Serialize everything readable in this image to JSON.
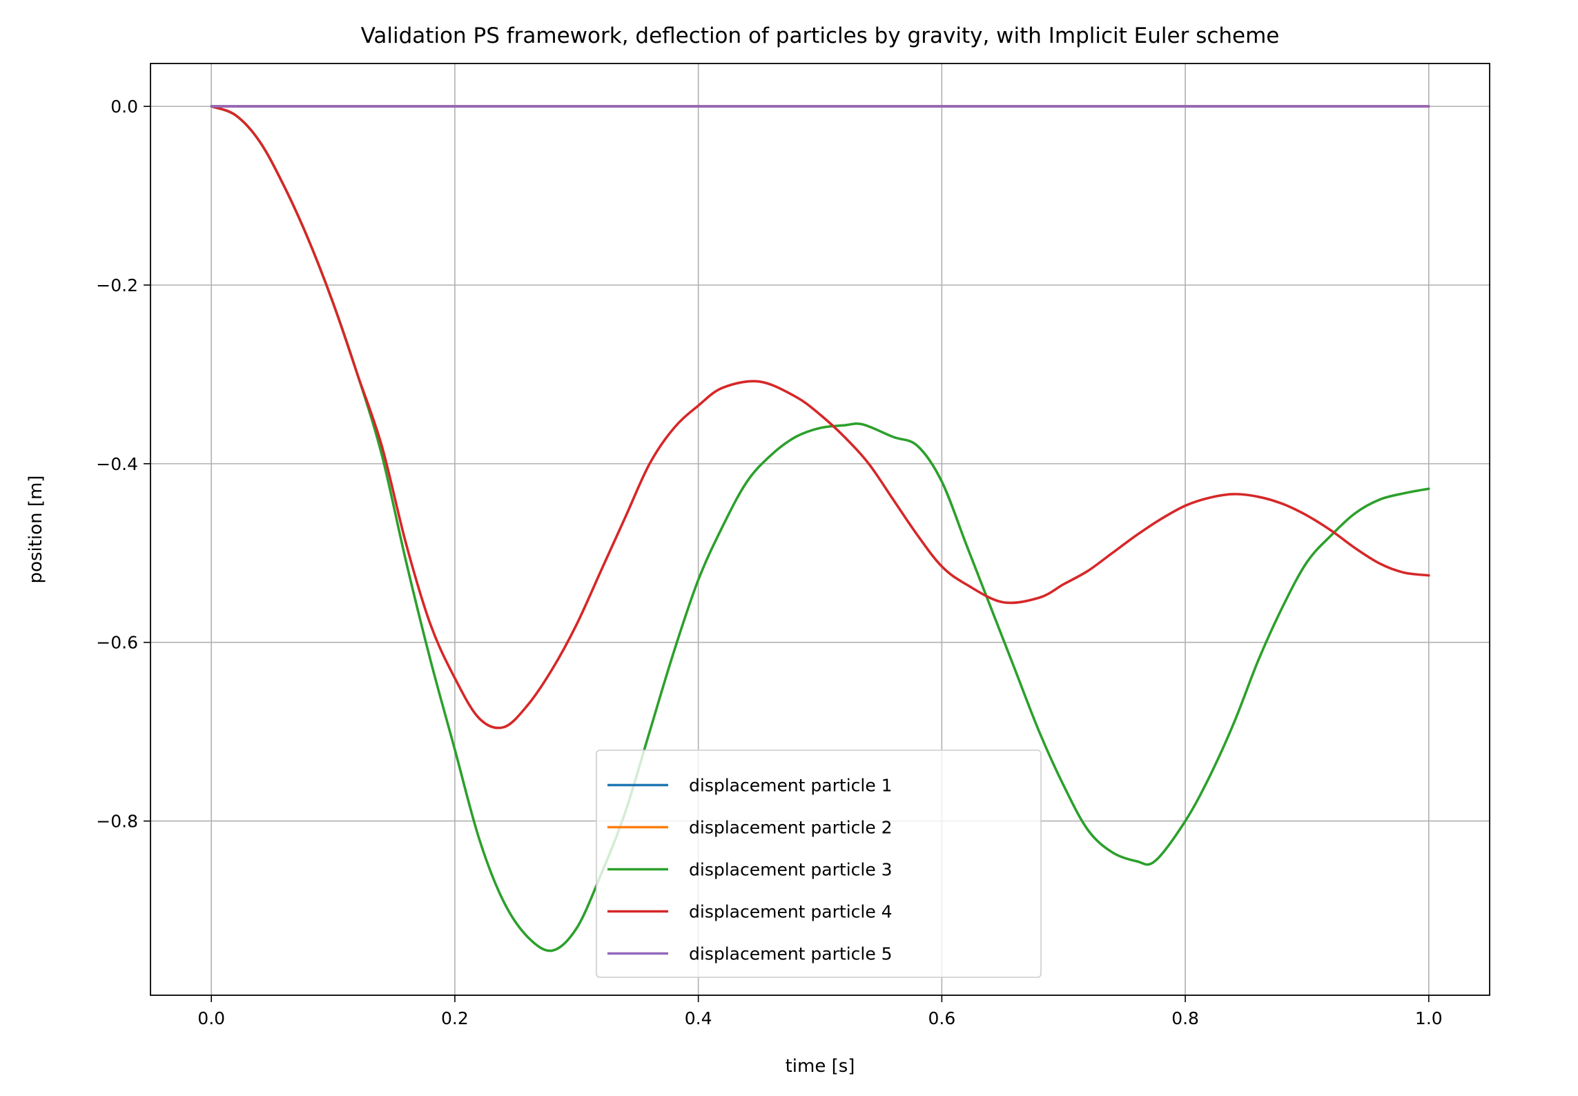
{
  "chart_data": {
    "type": "line",
    "title": "Validation PS framework, deflection of particles by gravity, with Implicit Euler scheme",
    "xlabel": "time [s]",
    "ylabel": "position [m]",
    "xlim": [
      -0.05,
      1.05
    ],
    "ylim": [
      -0.995,
      0.048
    ],
    "xticks": [
      0.0,
      0.2,
      0.4,
      0.6,
      0.8,
      1.0
    ],
    "xtick_labels": [
      "0.0",
      "0.2",
      "0.4",
      "0.6",
      "0.8",
      "1.0"
    ],
    "yticks": [
      0.0,
      -0.2,
      -0.4,
      -0.6,
      -0.8
    ],
    "ytick_labels": [
      "0.0",
      "−0.2",
      "−0.4",
      "−0.6",
      "−0.8"
    ],
    "grid": true,
    "legend_position": "lower-center",
    "series": [
      {
        "name": "displacement particle 1",
        "color": "#1f77b4",
        "x": [
          0.0,
          1.0
        ],
        "y": [
          0.0,
          0.0
        ]
      },
      {
        "name": "displacement particle 2",
        "color": "#ff7f0e",
        "x": [
          0.0,
          1.0
        ],
        "y": [
          0.0,
          0.0
        ]
      },
      {
        "name": "displacement particle 3",
        "color": "#2ca02c",
        "x": [
          0.0,
          0.02,
          0.04,
          0.06,
          0.08,
          0.1,
          0.12,
          0.14,
          0.16,
          0.18,
          0.2,
          0.22,
          0.24,
          0.26,
          0.28,
          0.3,
          0.32,
          0.34,
          0.36,
          0.38,
          0.4,
          0.42,
          0.44,
          0.46,
          0.48,
          0.5,
          0.52,
          0.535,
          0.56,
          0.58,
          0.6,
          0.62,
          0.64,
          0.66,
          0.68,
          0.7,
          0.72,
          0.74,
          0.76,
          0.775,
          0.8,
          0.82,
          0.84,
          0.86,
          0.88,
          0.9,
          0.92,
          0.94,
          0.96,
          0.98,
          1.0
        ],
        "y": [
          0.0,
          -0.01,
          -0.04,
          -0.09,
          -0.15,
          -0.22,
          -0.3,
          -0.39,
          -0.51,
          -0.62,
          -0.72,
          -0.82,
          -0.89,
          -0.93,
          -0.945,
          -0.92,
          -0.86,
          -0.79,
          -0.7,
          -0.61,
          -0.53,
          -0.47,
          -0.42,
          -0.39,
          -0.37,
          -0.36,
          -0.357,
          -0.356,
          -0.37,
          -0.38,
          -0.42,
          -0.49,
          -0.56,
          -0.63,
          -0.7,
          -0.76,
          -0.81,
          -0.835,
          -0.845,
          -0.845,
          -0.8,
          -0.75,
          -0.69,
          -0.62,
          -0.56,
          -0.51,
          -0.48,
          -0.455,
          -0.44,
          -0.433,
          -0.428
        ]
      },
      {
        "name": "displacement particle 4",
        "color": "#d62728",
        "x": [
          0.0,
          0.02,
          0.04,
          0.06,
          0.08,
          0.1,
          0.12,
          0.14,
          0.16,
          0.18,
          0.2,
          0.22,
          0.24,
          0.26,
          0.28,
          0.3,
          0.32,
          0.34,
          0.36,
          0.38,
          0.4,
          0.42,
          0.45,
          0.48,
          0.5,
          0.52,
          0.54,
          0.56,
          0.58,
          0.6,
          0.62,
          0.65,
          0.68,
          0.7,
          0.72,
          0.74,
          0.76,
          0.78,
          0.8,
          0.82,
          0.84,
          0.86,
          0.88,
          0.9,
          0.92,
          0.94,
          0.96,
          0.98,
          1.0
        ],
        "y": [
          0.0,
          -0.01,
          -0.04,
          -0.09,
          -0.15,
          -0.22,
          -0.3,
          -0.38,
          -0.49,
          -0.58,
          -0.64,
          -0.685,
          -0.695,
          -0.67,
          -0.63,
          -0.58,
          -0.52,
          -0.46,
          -0.4,
          -0.36,
          -0.335,
          -0.315,
          -0.308,
          -0.325,
          -0.345,
          -0.37,
          -0.4,
          -0.44,
          -0.48,
          -0.515,
          -0.535,
          -0.555,
          -0.55,
          -0.535,
          -0.52,
          -0.5,
          -0.48,
          -0.462,
          -0.447,
          -0.438,
          -0.434,
          -0.437,
          -0.445,
          -0.458,
          -0.475,
          -0.495,
          -0.512,
          -0.522,
          -0.525
        ]
      },
      {
        "name": "displacement particle 5",
        "color": "#9467bd",
        "x": [
          0.0,
          1.0
        ],
        "y": [
          0.0,
          0.0
        ]
      }
    ]
  }
}
